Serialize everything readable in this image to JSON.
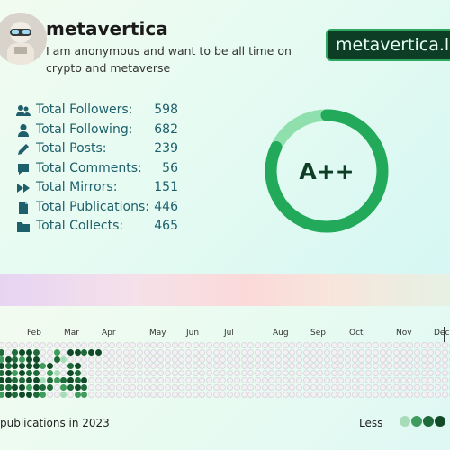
{
  "profile": {
    "name": "metavertica",
    "bio": "I am anonymous and want to be all time on crypto and metaverse",
    "domain_button": "metavertica.lens"
  },
  "stats": [
    {
      "icon": "users-icon",
      "label": "Total Followers:",
      "value": "598"
    },
    {
      "icon": "user-icon",
      "label": "Total Following:",
      "value": "682"
    },
    {
      "icon": "pencil-icon",
      "label": "Total Posts:",
      "value": "239"
    },
    {
      "icon": "comment-icon",
      "label": "Total Comments:",
      "value": "56"
    },
    {
      "icon": "fast-forward-icon",
      "label": "Total Mirrors:",
      "value": "151"
    },
    {
      "icon": "file-icon",
      "label": "Total Publications:",
      "value": "446"
    },
    {
      "icon": "folder-icon",
      "label": "Total Collects:",
      "value": "465"
    }
  ],
  "score": {
    "grade": "A++",
    "progress": 0.82
  },
  "colors": {
    "accent": "#22a95a",
    "accent_light": "#8fe0ad",
    "dark": "#0d3d25",
    "text_stats": "#1d5f6b"
  },
  "heatmap": {
    "months": [
      "Feb",
      "Mar",
      "Apr",
      "May",
      "Jun",
      "Jul",
      "Aug",
      "Sep",
      "Oct",
      "Nov",
      "Dec"
    ],
    "summary": "publications in 2023",
    "legend_less": "Less",
    "legend_levels": [
      "#a8dcb8",
      "#3f9c5c",
      "#1f6a3b",
      "#114a29"
    ]
  }
}
